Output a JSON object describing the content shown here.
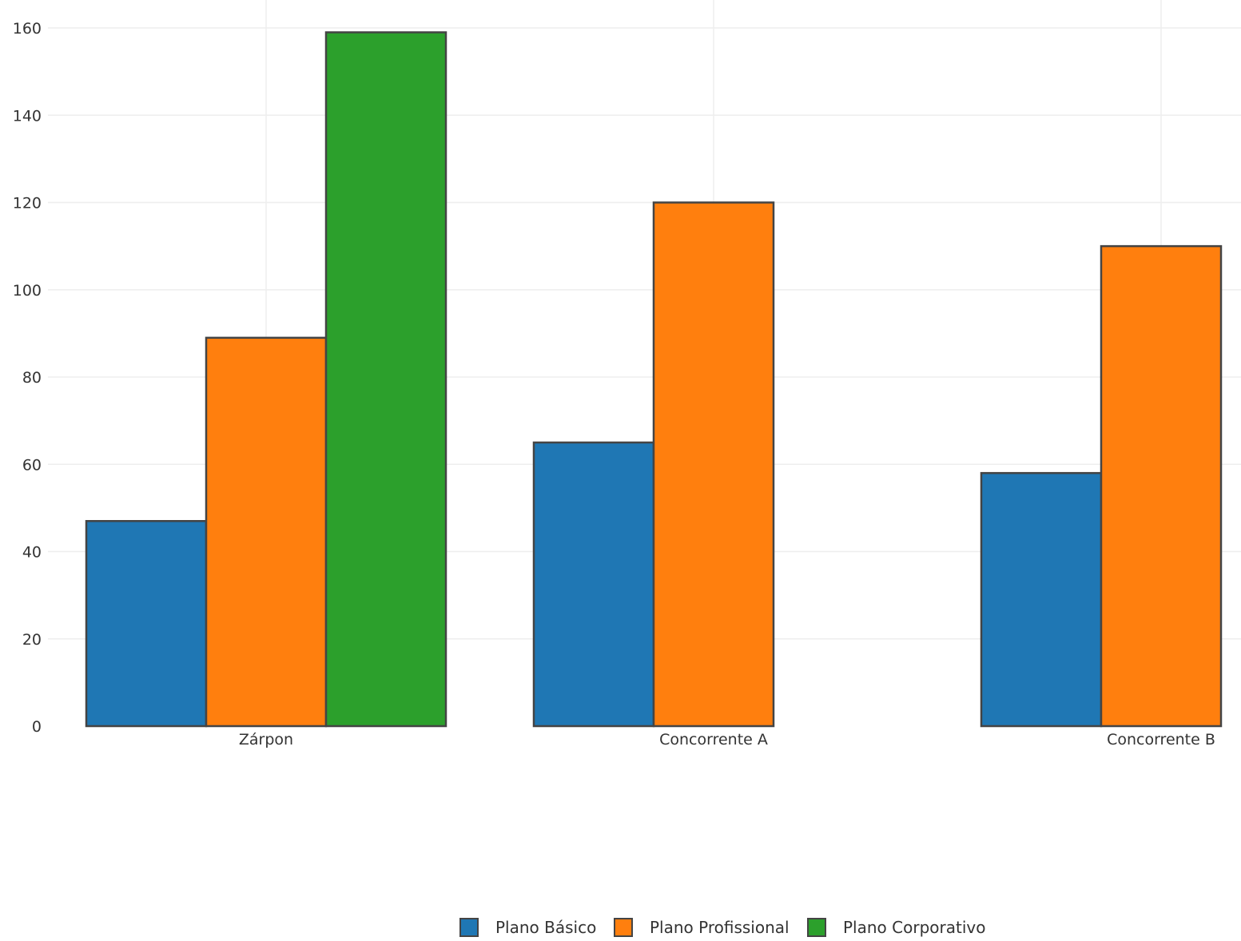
{
  "chart_data": {
    "type": "bar",
    "categories": [
      "Zárpon",
      "Concorrente A",
      "Concorrente B"
    ],
    "series": [
      {
        "name": "Plano Básico",
        "color": "#1f77b4",
        "values": [
          47,
          65,
          58
        ]
      },
      {
        "name": "Plano Profissional",
        "color": "#ff7f0e",
        "values": [
          89,
          120,
          110
        ]
      },
      {
        "name": "Plano Corporativo",
        "color": "#2ca02c",
        "values": [
          159,
          null,
          null
        ]
      }
    ],
    "ylim": [
      0,
      160
    ],
    "yticks": [
      0,
      20,
      40,
      60,
      80,
      100,
      120,
      140,
      160
    ],
    "grid": true,
    "legend_position": "bottom-center",
    "bar_outline_color": "#444444",
    "grid_color": "#eeeeee"
  }
}
